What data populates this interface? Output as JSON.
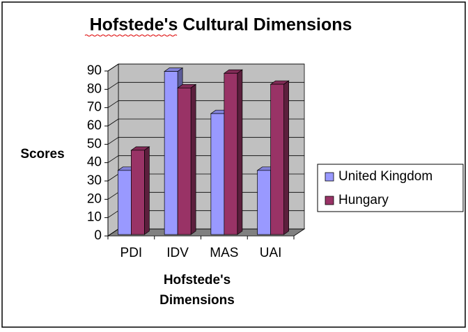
{
  "chart_data": {
    "type": "bar3d",
    "title": "Hofstede's Cultural Dimensions",
    "y_label": "Scores",
    "x_label": "Hofstede's Dimensions",
    "categories": [
      "PDI",
      "IDV",
      "MAS",
      "UAI"
    ],
    "series": [
      {
        "name": "United Kingdom",
        "color": "#9999ff",
        "values": [
          35,
          89,
          66,
          35
        ]
      },
      {
        "name": "Hungary",
        "color": "#993366",
        "values": [
          46,
          80,
          88,
          82
        ]
      }
    ],
    "ylim": [
      0,
      90
    ],
    "yticks": [
      0,
      10,
      20,
      30,
      40,
      50,
      60,
      70,
      80,
      90
    ],
    "grid": true,
    "legend": "right"
  }
}
